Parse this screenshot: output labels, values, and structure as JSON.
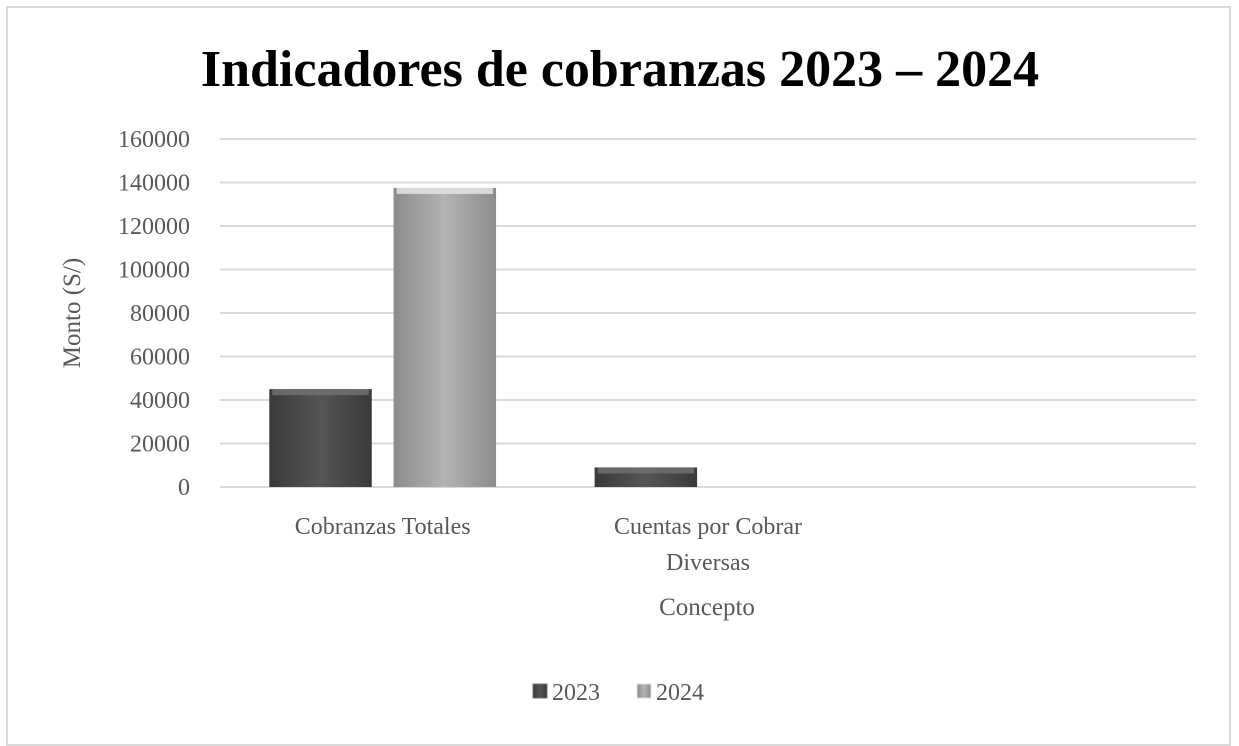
{
  "chart_data": {
    "type": "bar",
    "title": "Indicadores de cobranzas 2023 – 2024",
    "xlabel": "Concepto",
    "ylabel": "Monto (S/)",
    "categories": [
      [
        "Cobranzas Totales"
      ],
      [
        "Cuentas por Cobrar",
        "Diversas"
      ],
      []
    ],
    "series": [
      {
        "name": "2023",
        "values": [
          45000,
          9000,
          null
        ],
        "color": "#4d4d4d"
      },
      {
        "name": "2024",
        "values": [
          137500,
          null,
          null
        ],
        "color": "#a6a6a6"
      }
    ],
    "ylim": [
      0,
      160000
    ],
    "yticks": [
      0,
      20000,
      40000,
      60000,
      80000,
      100000,
      120000,
      140000,
      160000
    ],
    "grid": true,
    "legend_position": "bottom"
  }
}
